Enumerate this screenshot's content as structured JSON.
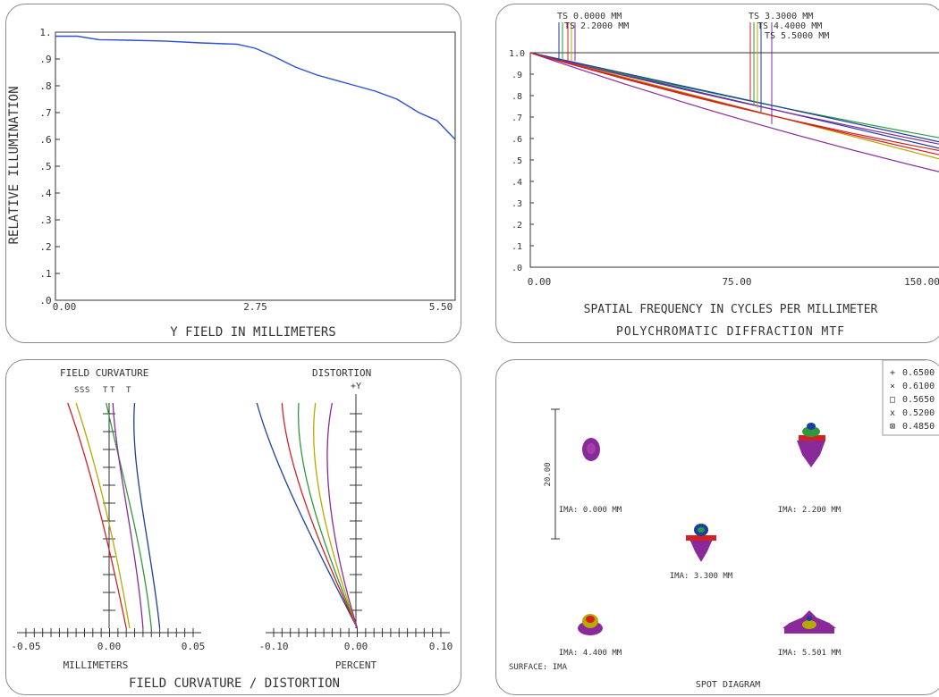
{
  "ri": {
    "ylabel": "RELATIVE ILLUMINATION",
    "xlabel": "Y FIELD IN MILLIMETERS",
    "xticks": [
      "0.00",
      "2.75",
      "5.50"
    ],
    "yticks": [
      ".0",
      ".1",
      ".2",
      ".3",
      ".4",
      ".5",
      ".6",
      ".7",
      ".8",
      ".9",
      "1."
    ]
  },
  "mtf": {
    "xlabel": "SPATIAL FREQUENCY IN CYCLES PER MILLIMETER",
    "title": "POLYCHROMATIC DIFFRACTION MTF",
    "xticks": [
      "0.00",
      "75.00",
      "150.00"
    ],
    "yticks": [
      ".0",
      ".1",
      ".2",
      ".3",
      ".4",
      ".5",
      ".6",
      ".7",
      ".8",
      ".9",
      "1.0"
    ],
    "field_labels": [
      "TS 0.0000 MM",
      "TS 2.2000 MM",
      "TS 3.3000 MM",
      "TS 4.4000 MM",
      "TS 5.5000 MM"
    ]
  },
  "fcd": {
    "fc_title": "FIELD CURVATURE",
    "dist_title": "DISTORTION",
    "fc_st_labels": [
      "S",
      "S",
      "S",
      "T",
      "T",
      "T"
    ],
    "dist_y_label": "+Y",
    "fc_xlabel": "MILLIMETERS",
    "dist_xlabel": "PERCENT",
    "fc_xticks": [
      "-0.05",
      "0.00",
      "0.05"
    ],
    "dist_xticks": [
      "-0.10",
      "0.00",
      "0.10"
    ],
    "bottom_title": "FIELD CURVATURE / DISTORTION"
  },
  "spot": {
    "scale_label": "20.00",
    "field_labels": [
      "IMA: 0.000 MM",
      "IMA: 2.200 MM",
      "IMA: 3.300 MM",
      "IMA: 4.400 MM",
      "IMA: 5.501 MM"
    ],
    "surface_label": "SURFACE: IMA",
    "title": "SPOT DIAGRAM",
    "legend": [
      {
        "symbol": "+",
        "value": "0.6500",
        "color": "#1a3fa0"
      },
      {
        "symbol": "×",
        "value": "0.6100",
        "color": "#2e9a3a"
      },
      {
        "symbol": "□",
        "value": "0.5650",
        "color": "#d42020"
      },
      {
        "symbol": "x",
        "value": "0.5200",
        "color": "#b8a800"
      },
      {
        "symbol": "⊠",
        "value": "0.4850",
        "color": "#8a2a9a"
      }
    ]
  },
  "chart_data": [
    {
      "type": "line",
      "title": "",
      "xlabel": "Y FIELD IN MILLIMETERS",
      "ylabel": "RELATIVE ILLUMINATION",
      "xlim": [
        0,
        5.5
      ],
      "ylim": [
        0,
        1
      ],
      "series": [
        {
          "color": "#2b4fd0",
          "x": [
            0,
            0.3,
            0.6,
            1.0,
            1.5,
            2.0,
            2.5,
            2.75,
            3.0,
            3.3,
            3.6,
            4.0,
            4.4,
            4.7,
            5.0,
            5.25,
            5.5
          ],
          "values": [
            0.985,
            0.985,
            0.972,
            0.97,
            0.967,
            0.96,
            0.955,
            0.94,
            0.91,
            0.87,
            0.84,
            0.81,
            0.78,
            0.75,
            0.7,
            0.67,
            0.6
          ]
        }
      ]
    },
    {
      "type": "line",
      "title": "POLYCHROMATIC DIFFRACTION MTF",
      "xlabel": "SPATIAL FREQUENCY IN CYCLES PER MILLIMETER",
      "xlim": [
        0,
        150
      ],
      "ylim": [
        0,
        1
      ],
      "series": [
        {
          "color": "#1a3fa0",
          "x": [
            0,
            150
          ],
          "values": [
            1.0,
            0.55
          ]
        },
        {
          "color": "#2e9a3a",
          "x": [
            0,
            150
          ],
          "values": [
            1.0,
            0.6
          ]
        },
        {
          "color": "#d42020",
          "x": [
            0,
            150
          ],
          "values": [
            1.0,
            0.54
          ]
        },
        {
          "color": "#b8a800",
          "x": [
            0,
            150
          ],
          "values": [
            1.0,
            0.5
          ]
        },
        {
          "color": "#8a2a9a",
          "x": [
            0,
            150
          ],
          "values": [
            1.0,
            0.57
          ]
        },
        {
          "color": "#8a2a9a",
          "x": [
            0,
            150
          ],
          "values": [
            1.0,
            0.44
          ]
        },
        {
          "color": "#1a3fa0",
          "x": [
            0,
            150
          ],
          "values": [
            1.0,
            0.58
          ]
        },
        {
          "color": "#d42020",
          "x": [
            0,
            150
          ],
          "values": [
            1.0,
            0.52
          ]
        }
      ]
    },
    {
      "type": "line",
      "title": "FIELD CURVATURE",
      "xlabel": "MILLIMETERS",
      "xlim": [
        -0.05,
        0.05
      ],
      "ylim": [
        0,
        5.5
      ],
      "series": [
        {
          "color": "#1a3fa0",
          "x": [
            0.03,
            0.025,
            0.012,
            0.015
          ],
          "values": [
            0,
            2.0,
            4.0,
            5.5
          ]
        },
        {
          "color": "#2e9a3a",
          "x": [
            0.025,
            0.02,
            0.006,
            -0.002
          ],
          "values": [
            0,
            2.0,
            4.0,
            5.5
          ]
        },
        {
          "color": "#d42020",
          "x": [
            0.01,
            0.0,
            -0.012,
            -0.025
          ],
          "values": [
            0,
            2.0,
            4.0,
            5.5
          ]
        },
        {
          "color": "#b8a800",
          "x": [
            0.012,
            0.004,
            -0.008,
            -0.02
          ],
          "values": [
            0,
            2.0,
            4.0,
            5.5
          ]
        },
        {
          "color": "#8a2a9a",
          "x": [
            0.02,
            0.016,
            0.004,
            0.002
          ],
          "values": [
            0,
            2.0,
            4.0,
            5.5
          ]
        }
      ]
    },
    {
      "type": "line",
      "title": "DISTORTION",
      "xlabel": "PERCENT",
      "xlim": [
        -0.1,
        0.1
      ],
      "ylim": [
        0,
        5.5
      ],
      "series": [
        {
          "color": "#1a3fa0",
          "x": [
            0.0,
            -0.05,
            -0.1,
            -0.12
          ],
          "values": [
            0,
            2.0,
            4.0,
            5.5
          ]
        },
        {
          "color": "#2e9a3a",
          "x": [
            0.0,
            -0.04,
            -0.075,
            -0.07
          ],
          "values": [
            0,
            2.0,
            4.0,
            5.5
          ]
        },
        {
          "color": "#d42020",
          "x": [
            0.0,
            -0.045,
            -0.085,
            -0.09
          ],
          "values": [
            0,
            2.0,
            4.0,
            5.5
          ]
        },
        {
          "color": "#b8a800",
          "x": [
            0.0,
            -0.035,
            -0.06,
            -0.05
          ],
          "values": [
            0,
            2.0,
            4.0,
            5.5
          ]
        },
        {
          "color": "#8a2a9a",
          "x": [
            0.0,
            -0.03,
            -0.045,
            -0.03
          ],
          "values": [
            0,
            2.0,
            4.0,
            5.5
          ]
        }
      ]
    }
  ]
}
